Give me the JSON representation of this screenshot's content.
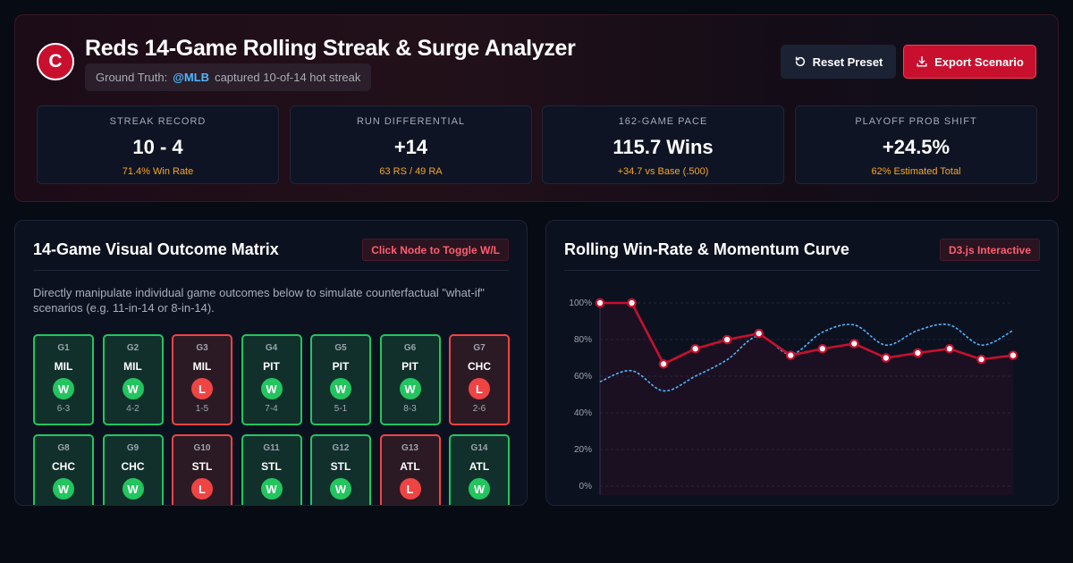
{
  "header": {
    "logo_letter": "C",
    "title": "Reds 14-Game Rolling Streak & Surge Analyzer",
    "truth_label": "Ground Truth:",
    "truth_handle": "@MLB",
    "truth_text": "captured 10-of-14 hot streak",
    "reset_label": "Reset Preset",
    "export_label": "Export Scenario"
  },
  "stats": [
    {
      "label": "STREAK RECORD",
      "value": "10 - 4",
      "sub": "71.4% Win Rate"
    },
    {
      "label": "RUN DIFFERENTIAL",
      "value": "+14",
      "sub": "63 RS / 49 RA"
    },
    {
      "label": "162-GAME PACE",
      "value": "115.7 Wins",
      "sub": "+34.7 vs Base (.500)"
    },
    {
      "label": "PLAYOFF PROB SHIFT",
      "value": "+24.5%",
      "sub": "62% Estimated Total"
    }
  ],
  "matrix": {
    "title": "14-Game Visual Outcome Matrix",
    "badge": "Click Node to Toggle W/L",
    "description": "Directly manipulate individual game outcomes below to simulate counterfactual \"what-if\" scenarios (e.g. 11-in-14 or 8-in-14).",
    "games": [
      {
        "id": "G1",
        "opp": "MIL",
        "result": "W",
        "score": "6-3"
      },
      {
        "id": "G2",
        "opp": "MIL",
        "result": "W",
        "score": "4-2"
      },
      {
        "id": "G3",
        "opp": "MIL",
        "result": "L",
        "score": "1-5"
      },
      {
        "id": "G4",
        "opp": "PIT",
        "result": "W",
        "score": "7-4"
      },
      {
        "id": "G5",
        "opp": "PIT",
        "result": "W",
        "score": "5-1"
      },
      {
        "id": "G6",
        "opp": "PIT",
        "result": "W",
        "score": "8-3"
      },
      {
        "id": "G7",
        "opp": "CHC",
        "result": "L",
        "score": "2-6"
      },
      {
        "id": "G8",
        "opp": "CHC",
        "result": "W",
        "score": ""
      },
      {
        "id": "G9",
        "opp": "CHC",
        "result": "W",
        "score": ""
      },
      {
        "id": "G10",
        "opp": "STL",
        "result": "L",
        "score": ""
      },
      {
        "id": "G11",
        "opp": "STL",
        "result": "W",
        "score": ""
      },
      {
        "id": "G12",
        "opp": "STL",
        "result": "W",
        "score": ""
      },
      {
        "id": "G13",
        "opp": "ATL",
        "result": "L",
        "score": ""
      },
      {
        "id": "G14",
        "opp": "ATL",
        "result": "W",
        "score": ""
      }
    ]
  },
  "curve": {
    "title": "Rolling Win-Rate & Momentum Curve",
    "badge": "D3.js Interactive"
  },
  "chart_data": {
    "type": "line",
    "ylim": [
      0,
      100
    ],
    "yticks": [
      "0%",
      "20%",
      "40%",
      "60%",
      "80%",
      "100%"
    ],
    "x": [
      1,
      2,
      3,
      4,
      5,
      6,
      7,
      8,
      9,
      10,
      11,
      12,
      13,
      14
    ],
    "series": [
      {
        "values": [
          100,
          100,
          66.7,
          75,
          80,
          83.3,
          71.4,
          75,
          77.8,
          70,
          72.7,
          75,
          69.2,
          71.4
        ],
        "color": "#c8102e"
      },
      {
        "values": [
          57,
          63,
          52,
          60,
          69,
          82,
          72,
          84,
          88,
          77,
          85,
          88,
          77,
          85
        ],
        "color": "#4fb6ff"
      }
    ]
  }
}
